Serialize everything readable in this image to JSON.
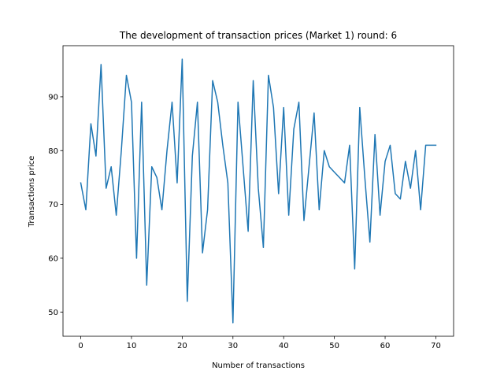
{
  "chart_data": {
    "type": "line",
    "title": "The development of transaction prices (Market 1) round: 6",
    "xlabel": "Number of transactions",
    "ylabel": "Transactions price",
    "xlim": [
      -3.5,
      73.5
    ],
    "ylim": [
      45.5,
      99.5
    ],
    "xticks": [
      0,
      10,
      20,
      30,
      40,
      50,
      60,
      70
    ],
    "yticks": [
      50,
      60,
      70,
      80,
      90
    ],
    "grid": false,
    "line_color": "#1f77b4",
    "series": [
      {
        "x": [
          0,
          1,
          2,
          3,
          4,
          5,
          6,
          7,
          8,
          9,
          10,
          11,
          12,
          13,
          14,
          15,
          16,
          17,
          18,
          19,
          20,
          21,
          22,
          23,
          24,
          25,
          26,
          27,
          28,
          29,
          30,
          31,
          32,
          33,
          34,
          35,
          36,
          37,
          38,
          39,
          40,
          41,
          42,
          43,
          44,
          45,
          46,
          47,
          48,
          49,
          50,
          51,
          52,
          53,
          54,
          55,
          56,
          57,
          58,
          59,
          60,
          61,
          62,
          63,
          64,
          65,
          66,
          67,
          68,
          69,
          70
        ],
        "values": [
          74,
          69,
          85,
          79,
          96,
          73,
          77,
          68,
          80,
          94,
          89,
          60,
          89,
          55,
          77,
          75,
          69,
          80,
          89,
          74,
          97,
          52,
          79,
          89,
          61,
          69,
          93,
          89,
          81,
          74,
          48,
          89,
          77,
          65,
          93,
          73,
          62,
          94,
          88,
          72,
          88,
          68,
          84,
          89,
          67,
          77,
          87,
          69,
          80,
          77,
          76,
          75,
          74,
          81,
          58,
          88,
          75,
          63,
          83,
          68,
          78,
          81,
          72,
          71,
          78,
          73,
          80,
          69,
          81,
          81,
          81
        ]
      }
    ]
  }
}
